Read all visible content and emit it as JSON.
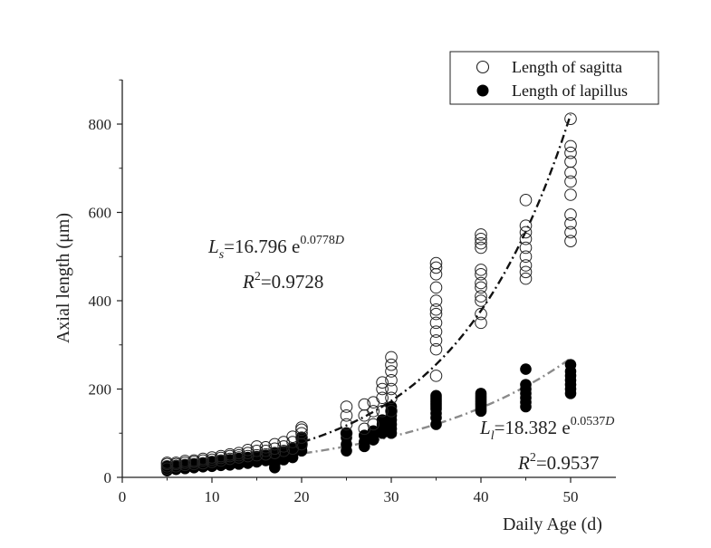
{
  "chart_data": {
    "type": "scatter",
    "xlabel": "Daily Age (d)",
    "ylabel": "Axial length (μm)",
    "xlim": [
      0,
      55
    ],
    "ylim": [
      0,
      900
    ],
    "xticks": [
      0,
      10,
      20,
      30,
      40,
      50
    ],
    "yticks": [
      0,
      200,
      400,
      600,
      800
    ],
    "legend_position": "top-right",
    "series": [
      {
        "name": "Length of sagitta",
        "marker": "open-circle",
        "color": "#222222",
        "points": [
          [
            5,
            20
          ],
          [
            5,
            25
          ],
          [
            5,
            30
          ],
          [
            5,
            33
          ],
          [
            6,
            25
          ],
          [
            6,
            30
          ],
          [
            6,
            33
          ],
          [
            7,
            28
          ],
          [
            7,
            33
          ],
          [
            7,
            37
          ],
          [
            8,
            30
          ],
          [
            8,
            35
          ],
          [
            8,
            38
          ],
          [
            9,
            32
          ],
          [
            9,
            38
          ],
          [
            9,
            42
          ],
          [
            10,
            35
          ],
          [
            10,
            40
          ],
          [
            10,
            45
          ],
          [
            11,
            38
          ],
          [
            11,
            44
          ],
          [
            11,
            48
          ],
          [
            12,
            42
          ],
          [
            12,
            48
          ],
          [
            12,
            52
          ],
          [
            13,
            45
          ],
          [
            13,
            50
          ],
          [
            13,
            55
          ],
          [
            14,
            48
          ],
          [
            14,
            55
          ],
          [
            14,
            62
          ],
          [
            15,
            50
          ],
          [
            15,
            60
          ],
          [
            15,
            70
          ],
          [
            16,
            52
          ],
          [
            16,
            60
          ],
          [
            16,
            68
          ],
          [
            17,
            55
          ],
          [
            17,
            65
          ],
          [
            17,
            75
          ],
          [
            18,
            60
          ],
          [
            18,
            70
          ],
          [
            18,
            80
          ],
          [
            19,
            65
          ],
          [
            19,
            80
          ],
          [
            19,
            92
          ],
          [
            20,
            75
          ],
          [
            20,
            90
          ],
          [
            20,
            100
          ],
          [
            20,
            108
          ],
          [
            20,
            113
          ],
          [
            25,
            100
          ],
          [
            25,
            120
          ],
          [
            25,
            140
          ],
          [
            25,
            160
          ],
          [
            27,
            110
          ],
          [
            27,
            140
          ],
          [
            27,
            165
          ],
          [
            28,
            120
          ],
          [
            28,
            150
          ],
          [
            28,
            170
          ],
          [
            29,
            150
          ],
          [
            29,
            180
          ],
          [
            29,
            200
          ],
          [
            29,
            215
          ],
          [
            30,
            150
          ],
          [
            30,
            180
          ],
          [
            30,
            200
          ],
          [
            30,
            220
          ],
          [
            30,
            240
          ],
          [
            30,
            255
          ],
          [
            30,
            272
          ],
          [
            35,
            230
          ],
          [
            35,
            290
          ],
          [
            35,
            310
          ],
          [
            35,
            330
          ],
          [
            35,
            350
          ],
          [
            35,
            370
          ],
          [
            35,
            380
          ],
          [
            35,
            400
          ],
          [
            35,
            430
          ],
          [
            35,
            460
          ],
          [
            35,
            475
          ],
          [
            35,
            485
          ],
          [
            40,
            350
          ],
          [
            40,
            370
          ],
          [
            40,
            400
          ],
          [
            40,
            410
          ],
          [
            40,
            430
          ],
          [
            40,
            440
          ],
          [
            40,
            460
          ],
          [
            40,
            470
          ],
          [
            40,
            520
          ],
          [
            40,
            530
          ],
          [
            40,
            540
          ],
          [
            40,
            550
          ],
          [
            45,
            450
          ],
          [
            45,
            465
          ],
          [
            45,
            480
          ],
          [
            45,
            500
          ],
          [
            45,
            520
          ],
          [
            45,
            540
          ],
          [
            45,
            555
          ],
          [
            45,
            570
          ],
          [
            45,
            628
          ],
          [
            50,
            535
          ],
          [
            50,
            555
          ],
          [
            50,
            575
          ],
          [
            50,
            595
          ],
          [
            50,
            640
          ],
          [
            50,
            670
          ],
          [
            50,
            690
          ],
          [
            50,
            715
          ],
          [
            50,
            735
          ],
          [
            50,
            750
          ],
          [
            50,
            812
          ]
        ]
      },
      {
        "name": "Length of lapillus",
        "marker": "filled-circle",
        "color": "#000000",
        "points": [
          [
            5,
            15
          ],
          [
            5,
            20
          ],
          [
            5,
            25
          ],
          [
            6,
            18
          ],
          [
            6,
            22
          ],
          [
            6,
            27
          ],
          [
            7,
            20
          ],
          [
            7,
            25
          ],
          [
            7,
            28
          ],
          [
            8,
            22
          ],
          [
            8,
            27
          ],
          [
            8,
            30
          ],
          [
            9,
            24
          ],
          [
            9,
            28
          ],
          [
            9,
            32
          ],
          [
            10,
            25
          ],
          [
            10,
            30
          ],
          [
            10,
            35
          ],
          [
            11,
            27
          ],
          [
            11,
            32
          ],
          [
            11,
            37
          ],
          [
            12,
            28
          ],
          [
            12,
            34
          ],
          [
            12,
            40
          ],
          [
            13,
            30
          ],
          [
            13,
            37
          ],
          [
            13,
            43
          ],
          [
            14,
            32
          ],
          [
            14,
            38
          ],
          [
            14,
            45
          ],
          [
            15,
            35
          ],
          [
            15,
            40
          ],
          [
            15,
            47
          ],
          [
            16,
            38
          ],
          [
            16,
            43
          ],
          [
            16,
            50
          ],
          [
            17,
            22
          ],
          [
            17,
            30
          ],
          [
            17,
            45
          ],
          [
            17,
            55
          ],
          [
            18,
            40
          ],
          [
            18,
            48
          ],
          [
            18,
            58
          ],
          [
            19,
            45
          ],
          [
            19,
            55
          ],
          [
            19,
            65
          ],
          [
            20,
            60
          ],
          [
            20,
            70
          ],
          [
            20,
            78
          ],
          [
            20,
            85
          ],
          [
            20,
            90
          ],
          [
            25,
            60
          ],
          [
            25,
            75
          ],
          [
            25,
            90
          ],
          [
            25,
            100
          ],
          [
            27,
            70
          ],
          [
            27,
            80
          ],
          [
            27,
            95
          ],
          [
            28,
            85
          ],
          [
            28,
            95
          ],
          [
            28,
            105
          ],
          [
            29,
            100
          ],
          [
            29,
            110
          ],
          [
            29,
            120
          ],
          [
            29,
            130
          ],
          [
            30,
            100
          ],
          [
            30,
            110
          ],
          [
            30,
            120
          ],
          [
            30,
            130
          ],
          [
            30,
            140
          ],
          [
            30,
            150
          ],
          [
            30,
            160
          ],
          [
            35,
            120
          ],
          [
            35,
            135
          ],
          [
            35,
            145
          ],
          [
            35,
            155
          ],
          [
            35,
            160
          ],
          [
            35,
            165
          ],
          [
            35,
            170
          ],
          [
            35,
            175
          ],
          [
            35,
            180
          ],
          [
            35,
            185
          ],
          [
            40,
            150
          ],
          [
            40,
            155
          ],
          [
            40,
            160
          ],
          [
            40,
            165
          ],
          [
            40,
            170
          ],
          [
            40,
            175
          ],
          [
            40,
            180
          ],
          [
            40,
            185
          ],
          [
            40,
            190
          ],
          [
            45,
            160
          ],
          [
            45,
            170
          ],
          [
            45,
            180
          ],
          [
            45,
            190
          ],
          [
            45,
            200
          ],
          [
            45,
            210
          ],
          [
            45,
            245
          ],
          [
            50,
            190
          ],
          [
            50,
            200
          ],
          [
            50,
            210
          ],
          [
            50,
            220
          ],
          [
            50,
            230
          ],
          [
            50,
            240
          ],
          [
            50,
            255
          ]
        ]
      }
    ],
    "fits": [
      {
        "series": "Length of sagitta",
        "a": 16.796,
        "b": 0.0778,
        "x_range": [
          5,
          50
        ],
        "color": "#111111",
        "style": "dash-dot"
      },
      {
        "series": "Length of lapillus",
        "a": 18.382,
        "b": 0.0537,
        "x_range": [
          5,
          50
        ],
        "color": "#8a8a8a",
        "style": "dash-dot"
      }
    ],
    "annotations": {
      "sagitta_eq": {
        "var": "L",
        "sub": "s",
        "rest": "=16.796 e",
        "exp": "0.0778",
        "exp_var": "D",
        "r2_var": "R",
        "r2_sup": "2",
        "r2_val": "=0.9728"
      },
      "lapillus_eq": {
        "var": "L",
        "sub": "l",
        "rest": "=18.382 e",
        "exp": "0.0537",
        "exp_var": "D",
        "r2_var": "R",
        "r2_sup": "2",
        "r2_val": "=0.9537"
      }
    }
  }
}
